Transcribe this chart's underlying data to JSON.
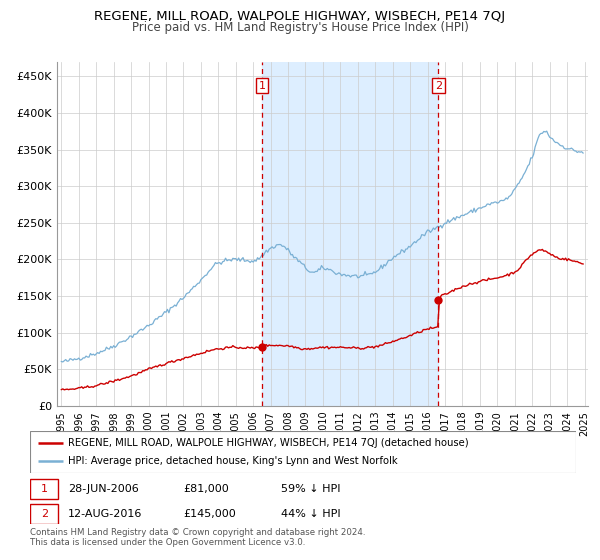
{
  "title": "REGENE, MILL ROAD, WALPOLE HIGHWAY, WISBECH, PE14 7QJ",
  "subtitle": "Price paid vs. HM Land Registry's House Price Index (HPI)",
  "ylim": [
    0,
    470000
  ],
  "yticks": [
    0,
    50000,
    100000,
    150000,
    200000,
    250000,
    300000,
    350000,
    400000,
    450000
  ],
  "ytick_labels": [
    "£0",
    "£50K",
    "£100K",
    "£150K",
    "£200K",
    "£250K",
    "£300K",
    "£350K",
    "£400K",
    "£450K"
  ],
  "grid_color": "#cccccc",
  "shade_color": "#ddeeff",
  "sale1_date": "28-JUN-2006",
  "sale1_price": "£81,000",
  "sale1_hpi": "59% ↓ HPI",
  "sale1_year": 2006.5,
  "sale1_value": 81000,
  "sale2_date": "12-AUG-2016",
  "sale2_price": "£145,000",
  "sale2_hpi": "44% ↓ HPI",
  "sale2_year": 2016.625,
  "sale2_value": 145000,
  "legend_line1": "REGENE, MILL ROAD, WALPOLE HIGHWAY, WISBECH, PE14 7QJ (detached house)",
  "legend_line2": "HPI: Average price, detached house, King's Lynn and West Norfolk",
  "footnote": "Contains HM Land Registry data © Crown copyright and database right 2024.\nThis data is licensed under the Open Government Licence v3.0.",
  "red_color": "#cc0000",
  "blue_color": "#7ab0d4",
  "title_fontsize": 9.5,
  "subtitle_fontsize": 8.5
}
